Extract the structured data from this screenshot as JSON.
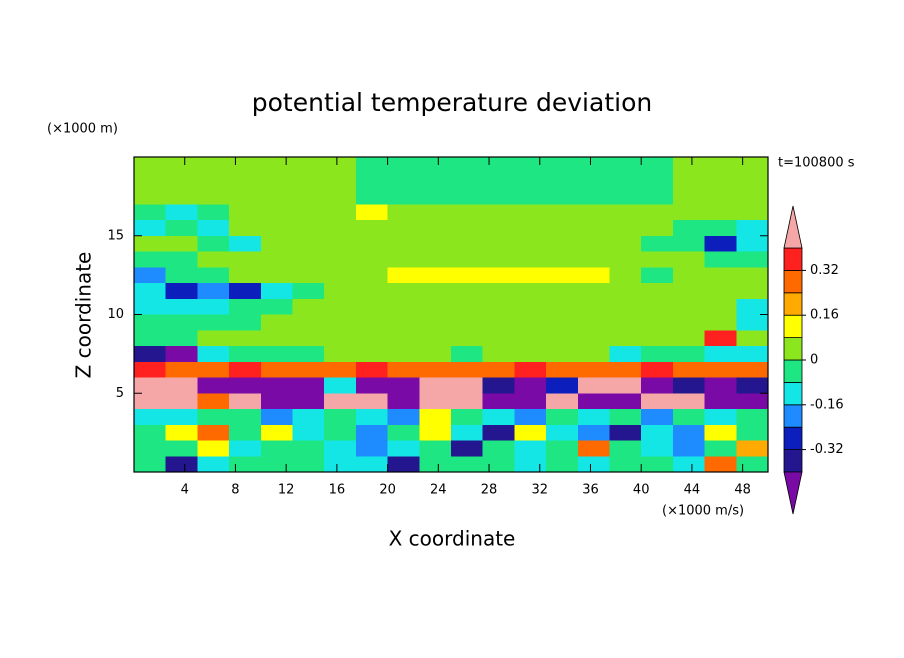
{
  "chart_data": {
    "type": "contour",
    "title": "potential temperature deviation",
    "x_label": "X coordinate",
    "y_label": "Z coordinate",
    "x_unit": "(×1000 m/s)",
    "y_unit": "(×1000 m)",
    "annotation": "t=100800 s",
    "xlim": [
      0,
      50
    ],
    "ylim": [
      0,
      20
    ],
    "xticks": [
      4,
      8,
      12,
      16,
      20,
      24,
      28,
      32,
      36,
      40,
      44,
      48
    ],
    "yticks": [
      5,
      10,
      15
    ],
    "x": [
      1.25,
      3.75,
      6.25,
      8.75,
      11.25,
      13.75,
      16.25,
      18.75,
      21.25,
      23.75,
      26.25,
      28.75,
      31.25,
      33.75,
      36.25,
      38.75,
      41.25,
      43.75,
      46.25,
      48.75
    ],
    "y": [
      19.5,
      18.5,
      17.5,
      16.5,
      15.5,
      14.5,
      13.5,
      12.5,
      11.5,
      10.5,
      9.5,
      8.5,
      7.5,
      6.5,
      5.5,
      4.5,
      3.5,
      2.5,
      1.5,
      0.5
    ],
    "z": [
      [
        0.04,
        0.04,
        0.04,
        0.04,
        0.04,
        0.04,
        0.04,
        -0.04,
        -0.04,
        -0.04,
        -0.04,
        -0.04,
        -0.04,
        -0.04,
        -0.04,
        -0.04,
        -0.04,
        0.04,
        0.04,
        0.04
      ],
      [
        0.04,
        0.04,
        0.04,
        0.04,
        0.04,
        0.04,
        0.04,
        -0.04,
        -0.04,
        -0.04,
        -0.04,
        -0.04,
        -0.04,
        -0.04,
        -0.04,
        -0.04,
        -0.04,
        0.04,
        0.04,
        0.04
      ],
      [
        0.04,
        0.04,
        0.04,
        0.04,
        0.04,
        0.04,
        0.04,
        -0.04,
        -0.04,
        -0.04,
        -0.04,
        -0.04,
        -0.04,
        -0.04,
        -0.04,
        -0.04,
        -0.04,
        0.04,
        0.04,
        0.04
      ],
      [
        -0.04,
        -0.12,
        -0.04,
        0.04,
        0.04,
        0.04,
        0.04,
        0.12,
        0.04,
        0.04,
        0.04,
        0.04,
        0.04,
        0.04,
        0.04,
        0.04,
        0.04,
        0.04,
        0.04,
        0.04
      ],
      [
        -0.12,
        -0.04,
        -0.12,
        0.04,
        0.04,
        0.04,
        0.04,
        0.04,
        0.04,
        0.04,
        0.04,
        0.04,
        0.04,
        0.04,
        0.04,
        0.04,
        0.04,
        -0.04,
        -0.04,
        -0.12
      ],
      [
        0.04,
        0.04,
        -0.04,
        -0.12,
        0.04,
        0.04,
        0.04,
        0.04,
        0.04,
        0.04,
        0.04,
        0.04,
        0.04,
        0.04,
        0.04,
        0.04,
        -0.04,
        -0.04,
        -0.28,
        -0.12
      ],
      [
        -0.04,
        -0.04,
        0.04,
        0.04,
        0.04,
        0.04,
        0.04,
        0.04,
        0.04,
        0.04,
        0.04,
        0.04,
        0.04,
        0.04,
        0.04,
        0.04,
        0.04,
        0.04,
        -0.04,
        -0.04
      ],
      [
        -0.2,
        -0.04,
        -0.04,
        0.04,
        0.04,
        0.04,
        0.04,
        0.04,
        0.12,
        0.12,
        0.12,
        0.12,
        0.12,
        0.12,
        0.12,
        0.04,
        -0.04,
        0.04,
        0.04,
        0.04
      ],
      [
        -0.12,
        -0.28,
        -0.2,
        -0.28,
        -0.12,
        -0.04,
        0.04,
        0.04,
        0.04,
        0.04,
        0.04,
        0.04,
        0.04,
        0.04,
        0.04,
        0.04,
        0.04,
        0.04,
        0.04,
        0.04
      ],
      [
        -0.12,
        -0.12,
        -0.12,
        -0.04,
        -0.04,
        0.04,
        0.04,
        0.04,
        0.04,
        0.04,
        0.04,
        0.04,
        0.04,
        0.04,
        0.04,
        0.04,
        0.04,
        0.04,
        0.04,
        -0.12
      ],
      [
        -0.04,
        -0.04,
        -0.04,
        -0.04,
        0.04,
        0.04,
        0.04,
        0.04,
        0.04,
        0.04,
        0.04,
        0.04,
        0.04,
        0.04,
        0.04,
        0.04,
        0.04,
        0.04,
        0.04,
        -0.12
      ],
      [
        -0.04,
        -0.04,
        0.04,
        0.04,
        0.04,
        0.04,
        0.04,
        0.04,
        0.04,
        0.04,
        0.04,
        0.04,
        0.04,
        0.04,
        0.04,
        0.04,
        0.04,
        0.04,
        0.36,
        0.04
      ],
      [
        -0.36,
        -0.44,
        -0.12,
        -0.04,
        -0.04,
        -0.04,
        0.04,
        0.04,
        0.04,
        0.04,
        -0.04,
        0.04,
        0.04,
        0.04,
        0.04,
        -0.12,
        -0.04,
        -0.04,
        -0.12,
        -0.12
      ],
      [
        0.36,
        0.28,
        0.28,
        0.36,
        0.28,
        0.28,
        0.28,
        0.36,
        0.28,
        0.28,
        0.28,
        0.28,
        0.36,
        0.28,
        0.28,
        0.28,
        0.36,
        0.28,
        0.28,
        0.28
      ],
      [
        0.44,
        0.44,
        -0.44,
        -0.44,
        -0.44,
        -0.44,
        -0.12,
        -0.44,
        -0.44,
        0.44,
        0.44,
        -0.36,
        -0.44,
        -0.28,
        0.44,
        0.44,
        -0.44,
        -0.36,
        -0.44,
        -0.36
      ],
      [
        0.44,
        0.44,
        0.28,
        0.44,
        -0.44,
        -0.44,
        0.44,
        0.44,
        -0.44,
        0.44,
        0.44,
        -0.44,
        -0.44,
        0.44,
        -0.44,
        -0.44,
        0.44,
        0.44,
        -0.44,
        -0.44
      ],
      [
        -0.12,
        -0.12,
        -0.04,
        -0.04,
        -0.2,
        -0.12,
        -0.04,
        -0.12,
        -0.2,
        0.12,
        -0.04,
        -0.12,
        -0.2,
        -0.04,
        -0.12,
        -0.04,
        -0.2,
        -0.04,
        -0.12,
        -0.04
      ],
      [
        -0.04,
        0.12,
        0.28,
        -0.04,
        0.12,
        -0.12,
        -0.04,
        -0.2,
        -0.04,
        0.12,
        -0.12,
        -0.36,
        0.12,
        -0.12,
        -0.2,
        -0.36,
        -0.12,
        -0.2,
        0.12,
        -0.04
      ],
      [
        -0.04,
        -0.04,
        0.12,
        -0.12,
        -0.04,
        -0.04,
        -0.12,
        -0.2,
        -0.12,
        -0.04,
        -0.36,
        -0.04,
        -0.12,
        -0.04,
        0.28,
        -0.04,
        -0.12,
        -0.2,
        -0.04,
        0.2
      ],
      [
        -0.04,
        -0.36,
        -0.12,
        -0.04,
        -0.04,
        -0.04,
        -0.12,
        -0.12,
        -0.36,
        -0.04,
        -0.04,
        -0.04,
        -0.12,
        -0.04,
        -0.12,
        -0.04,
        -0.04,
        -0.12,
        0.28,
        -0.04
      ]
    ],
    "colorbar": {
      "levels": [
        -0.4,
        -0.32,
        -0.24,
        -0.16,
        -0.08,
        0,
        0.08,
        0.16,
        0.24,
        0.32,
        0.4
      ],
      "colors": [
        "#7a0aa6",
        "#23168e",
        "#0c1fbd",
        "#1e8cff",
        "#14e6e6",
        "#1ee682",
        "#8ce61e",
        "#ffff00",
        "#ffaa00",
        "#ff6a00",
        "#ff2020",
        "#f5a6a6"
      ],
      "ticks": [
        -0.32,
        -0.16,
        0,
        0.16,
        0.32
      ]
    }
  }
}
